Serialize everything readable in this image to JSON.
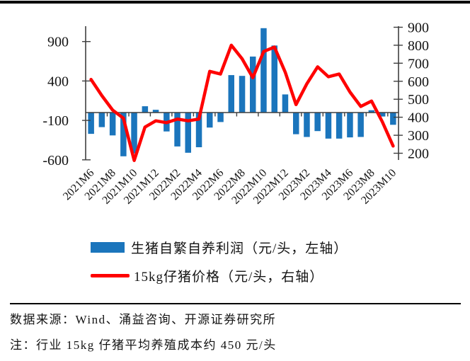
{
  "chart_data": {
    "type": "bar+line (dual axis)",
    "categories": [
      "2021M6",
      "2021M7",
      "2021M8",
      "2021M9",
      "2021M10",
      "2021M11",
      "2021M12",
      "2022M1",
      "2022M2",
      "2022M3",
      "2022M4",
      "2022M5",
      "2022M6",
      "2022M7",
      "2022M8",
      "2022M9",
      "2022M10",
      "2022M11",
      "2022M12",
      "2023M1",
      "2023M2",
      "2023M3",
      "2023M4",
      "2023M5",
      "2023M6",
      "2023M7",
      "2023M8",
      "2023M9",
      "2023M10"
    ],
    "x_tick_labels": [
      "2021M6",
      "2021M8",
      "2021M10",
      "2021M12",
      "2022M2",
      "2022M4",
      "2022M6",
      "2022M8",
      "2022M10",
      "2022M12",
      "2023M2",
      "2023M4",
      "2023M6",
      "2023M8",
      "2023M10"
    ],
    "series": [
      {
        "name": "生猪自繁自养利润（元/头，左轴）",
        "type": "bar",
        "axis": "left",
        "color": "#1B75BC",
        "values": [
          -270,
          -185,
          -290,
          -555,
          -520,
          80,
          35,
          -240,
          -430,
          -510,
          -440,
          -190,
          -120,
          475,
          465,
          710,
          1070,
          850,
          230,
          -275,
          -310,
          -235,
          -330,
          -330,
          -315,
          -310,
          30,
          -50,
          -155
        ]
      },
      {
        "name": "15kg仔猪价格（元/头，右轴）",
        "type": "line",
        "axis": "right",
        "color": "#FF0000",
        "values": [
          610,
          520,
          440,
          395,
          160,
          345,
          380,
          370,
          390,
          380,
          390,
          655,
          640,
          800,
          725,
          620,
          765,
          790,
          650,
          470,
          585,
          680,
          625,
          640,
          540,
          460,
          490,
          375,
          240
        ]
      }
    ],
    "left_axis": {
      "ticks": [
        900,
        400,
        -100,
        -600
      ],
      "min": -600,
      "max": 1100
    },
    "right_axis": {
      "ticks": [
        900,
        800,
        700,
        600,
        500,
        400,
        300,
        200
      ],
      "min": 150,
      "max": 905
    },
    "grid": "off",
    "legend_position": "bottom"
  },
  "footer": {
    "source": "数据来源：Wind、涌益咨询、开源证券研究所",
    "note": "注：行业 15kg 仔猪平均养殖成本约 450 元/头"
  },
  "style": {
    "axis_color": "#3F3F3F",
    "text_color": "#141414"
  }
}
